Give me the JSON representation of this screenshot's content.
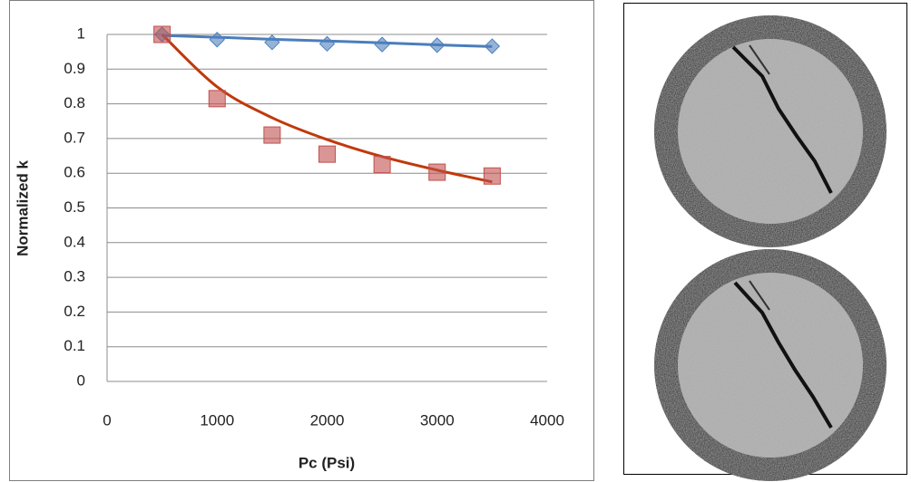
{
  "chart_data": {
    "type": "scatter",
    "x_label": "Pc (Psi)",
    "y_label": "Normalized k",
    "xlim": [
      0,
      4000
    ],
    "xticks": [
      0,
      1000,
      2000,
      3000,
      4000
    ],
    "ylim": [
      0,
      1
    ],
    "yticks": [
      0,
      0.1,
      0.2,
      0.3,
      0.4,
      0.5,
      0.6,
      0.7,
      0.8,
      0.9,
      1
    ],
    "grid": true,
    "x": [
      500,
      1000,
      1500,
      2000,
      2500,
      3000,
      3500
    ],
    "series": [
      {
        "color": "#4f81bd",
        "marker": "diamond",
        "trend_color": "#4a7ebb",
        "values": [
          1,
          0.985,
          0.977,
          0.973,
          0.971,
          0.969,
          0.966
        ],
        "trend_values": [
          0.997,
          0.992,
          0.986,
          0.981,
          0.976,
          0.97,
          0.965
        ]
      },
      {
        "color": "#c0504d",
        "marker": "square",
        "trend_color": "#c0390b",
        "values": [
          1,
          0.815,
          0.71,
          0.655,
          0.625,
          0.603,
          0.592
        ],
        "trend_values": [
          1,
          0.849,
          0.76,
          0.697,
          0.648,
          0.609,
          0.575
        ]
      }
    ]
  }
}
